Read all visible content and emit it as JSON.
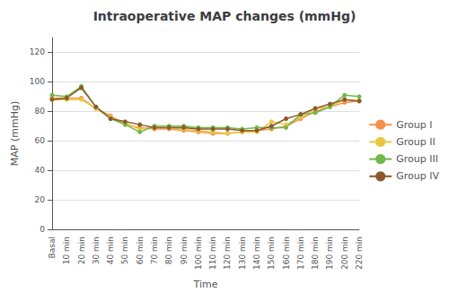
{
  "chart_data": {
    "type": "line",
    "title": "Intraoperative MAP changes (mmHg)",
    "xlabel": "Time",
    "ylabel": "MAP (mmHg)",
    "categories": [
      "Basal",
      "10 min",
      "20 min",
      "30 min",
      "40 min",
      "50 min",
      "60 min",
      "70 min",
      "80 min",
      "90 min",
      "100 min",
      "110 min",
      "120 min",
      "130 min",
      "140 min",
      "150 min",
      "160 min",
      "170 min",
      "180 min",
      "190 min",
      "200 min",
      "220 min"
    ],
    "series": [
      {
        "name": "Group I",
        "color": "#F5924A",
        "values": [
          89,
          89,
          89,
          82,
          77,
          71,
          69,
          68,
          68,
          67,
          66,
          65,
          65,
          66,
          67,
          68,
          70,
          75,
          80,
          83,
          86,
          87
        ]
      },
      {
        "name": "Group II",
        "color": "#E8C840",
        "values": [
          88,
          88,
          88,
          82,
          76,
          72,
          68,
          69,
          69,
          68,
          67,
          66,
          65,
          66,
          66,
          73,
          71,
          76,
          82,
          83,
          88,
          87
        ]
      },
      {
        "name": "Group III",
        "color": "#70B84A",
        "values": [
          91,
          90,
          97,
          83,
          75,
          71,
          66,
          70,
          70,
          70,
          69,
          69,
          69,
          68,
          69,
          69,
          69,
          78,
          79,
          83,
          91,
          90
        ]
      },
      {
        "name": "Group IV",
        "color": "#8B5A2B",
        "values": [
          88,
          89,
          96,
          83,
          75,
          73,
          71,
          69,
          69,
          69,
          68,
          68,
          68,
          67,
          67,
          70,
          75,
          78,
          82,
          85,
          88,
          87
        ]
      }
    ],
    "ylim": [
      0,
      130
    ],
    "yticks": [
      0,
      20,
      40,
      60,
      80,
      100,
      120
    ],
    "grid": true,
    "legend": "right",
    "marker": "circle"
  }
}
